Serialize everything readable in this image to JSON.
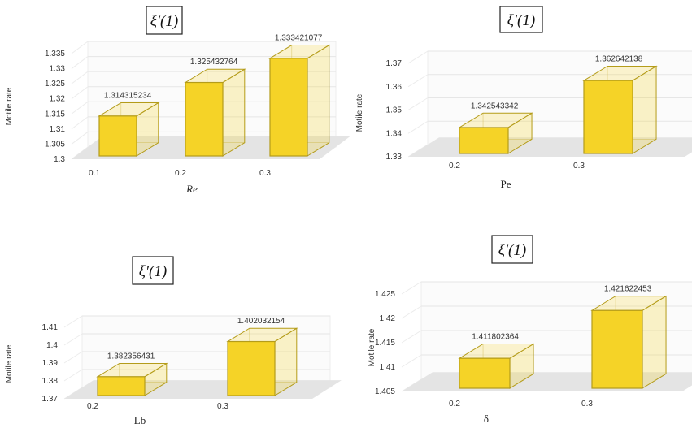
{
  "chart_data": [
    {
      "type": "bar",
      "title": "ξ′(1)",
      "ylabel": "Motile rate",
      "xlabel": "Re",
      "categories": [
        "0.1",
        "0.2",
        "0.3"
      ],
      "values": [
        1.314315234,
        1.325432764,
        1.333421077
      ],
      "value_labels": [
        "1.314315234",
        "1.325432764",
        "1.333421077"
      ],
      "yticks": [
        "1.3",
        "1.305",
        "1.31",
        "1.315",
        "1.32",
        "1.325",
        "1.33",
        "1.335"
      ],
      "ylim": [
        1.3,
        1.335
      ],
      "bar_color": "#f5d327",
      "edge_color": "#b49c1a"
    },
    {
      "type": "bar",
      "title": "ξ′(1)",
      "ylabel": "Motile rate",
      "xlabel": "Pe",
      "categories": [
        "0.2",
        "0.3"
      ],
      "values": [
        1.342543342,
        1.362642138
      ],
      "value_labels": [
        "1.342543342",
        "1.362642138"
      ],
      "yticks": [
        "1.33",
        "1.34",
        "1.35",
        "1.36",
        "1.37"
      ],
      "ylim": [
        1.33,
        1.37
      ],
      "bar_color": "#f5d327",
      "edge_color": "#b49c1a"
    },
    {
      "type": "bar",
      "title": "ξ′(1)",
      "ylabel": "Motile rate",
      "xlabel": "Lb",
      "categories": [
        "0.2",
        "0.3"
      ],
      "values": [
        1.382356431,
        1.402032154
      ],
      "value_labels": [
        "1.382356431",
        "1.402032154"
      ],
      "yticks": [
        "1.37",
        "1.38",
        "1.39",
        "1.4",
        "1.41"
      ],
      "ylim": [
        1.37,
        1.41
      ],
      "bar_color": "#f5d327",
      "edge_color": "#b49c1a"
    },
    {
      "type": "bar",
      "title": "ξ′(1)",
      "ylabel": "Motile rate",
      "xlabel": "δ",
      "categories": [
        "0.2",
        "0.3"
      ],
      "values": [
        1.411802364,
        1.421622453
      ],
      "value_labels": [
        "1.411802364",
        "1.421622453"
      ],
      "yticks": [
        "1.405",
        "1.41",
        "1.415",
        "1.42",
        "1.425"
      ],
      "ylim": [
        1.405,
        1.425
      ],
      "bar_color": "#f5d327",
      "edge_color": "#b49c1a"
    }
  ]
}
